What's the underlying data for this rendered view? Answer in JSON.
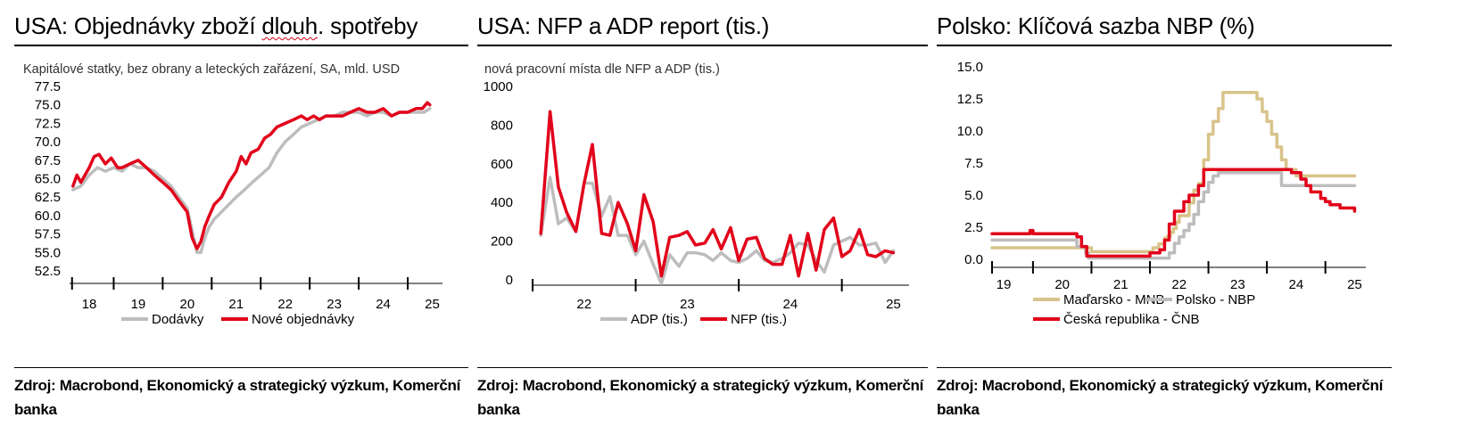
{
  "panels": [
    {
      "title_pre": "USA: Objednávky zboží ",
      "title_mid": "dlouh",
      "title_post": ". spotřeby",
      "subtitle": "Kapitálové statky, bez obrany a leteckých zařázení, SA, mld. USD",
      "source": "Zdroj: Macrobond, Ekonomický a strategický výzkum, Komerční banka"
    },
    {
      "title": "USA: NFP a ADP report (tis.)",
      "subtitle": "nová pracovní místa dle NFP a ADP (tis.)",
      "source": "Zdroj: Macrobond, Ekonomický a strategický výzkum, Komerční banka"
    },
    {
      "title": "Polsko: Klíčová sazba NBP (%)",
      "subtitle": "",
      "source": "Zdroj: Macrobond, Ekonomický a strategický výzkum, Komerční banka"
    }
  ],
  "colors": {
    "red": "#e2001a",
    "gray": "#bdbdbd",
    "tan": "#d8c38a"
  },
  "chart_data": [
    {
      "type": "line",
      "title": "USA: Objednávky zboží dlouh. spotřeby",
      "subtitle": "Kapitálové statky, bez obrany a leteckých zařázení, SA, mld. USD",
      "ylim": [
        52.5,
        77.5
      ],
      "yticks": [
        "77.5",
        "75.0",
        "72.5",
        "70.0",
        "67.5",
        "65.0",
        "62.5",
        "60.0",
        "57.5",
        "55.0",
        "52.5"
      ],
      "xlim": [
        2017.6,
        2025.1
      ],
      "xticks": [
        "18",
        "19",
        "20",
        "21",
        "22",
        "23",
        "24",
        "25"
      ],
      "legend": "bottom",
      "series": [
        {
          "name": "Dodávky",
          "color": "gray",
          "x": [
            2017.67,
            2017.83,
            2018.0,
            2018.17,
            2018.33,
            2018.5,
            2018.67,
            2018.83,
            2019.0,
            2019.17,
            2019.33,
            2019.5,
            2019.67,
            2019.83,
            2020.0,
            2020.1,
            2020.2,
            2020.28,
            2020.36,
            2020.45,
            2020.55,
            2020.7,
            2020.85,
            2021.0,
            2021.17,
            2021.33,
            2021.5,
            2021.67,
            2021.83,
            2022.0,
            2022.17,
            2022.33,
            2022.5,
            2022.67,
            2022.83,
            2023.0,
            2023.17,
            2023.33,
            2023.5,
            2023.67,
            2023.83,
            2024.0,
            2024.17,
            2024.33,
            2024.5,
            2024.67,
            2024.83,
            2024.95
          ],
          "values": [
            63.5,
            64.0,
            65.5,
            66.5,
            66.0,
            66.5,
            66.0,
            67.0,
            66.5,
            66.5,
            66.0,
            65.0,
            64.0,
            62.5,
            61.0,
            58.0,
            55.0,
            55.0,
            57.0,
            58.5,
            59.5,
            60.5,
            61.5,
            62.5,
            63.5,
            64.5,
            65.5,
            66.5,
            68.5,
            70.0,
            71.0,
            72.0,
            72.5,
            73.0,
            73.5,
            73.5,
            74.0,
            74.0,
            74.0,
            73.5,
            74.0,
            74.0,
            73.5,
            74.0,
            74.0,
            74.0,
            74.0,
            74.5
          ]
        },
        {
          "name": "Nové objednávky",
          "color": "red",
          "x": [
            2017.67,
            2017.75,
            2017.83,
            2018.0,
            2018.1,
            2018.2,
            2018.33,
            2018.45,
            2018.58,
            2018.67,
            2018.83,
            2019.0,
            2019.17,
            2019.33,
            2019.5,
            2019.67,
            2019.83,
            2020.0,
            2020.1,
            2020.2,
            2020.28,
            2020.36,
            2020.45,
            2020.55,
            2020.7,
            2020.85,
            2021.0,
            2021.1,
            2021.2,
            2021.3,
            2021.45,
            2021.58,
            2021.7,
            2021.83,
            2022.0,
            2022.17,
            2022.33,
            2022.45,
            2022.58,
            2022.7,
            2022.83,
            2023.0,
            2023.17,
            2023.33,
            2023.5,
            2023.67,
            2023.83,
            2024.0,
            2024.17,
            2024.33,
            2024.5,
            2024.67,
            2024.8,
            2024.9,
            2024.95
          ],
          "values": [
            64.0,
            65.5,
            64.5,
            66.5,
            68.0,
            68.3,
            67.0,
            67.8,
            66.5,
            66.5,
            67.0,
            67.5,
            66.5,
            65.5,
            64.5,
            63.5,
            62.0,
            60.5,
            57.0,
            55.5,
            56.5,
            58.5,
            60.0,
            61.5,
            62.5,
            64.5,
            66.0,
            68.0,
            67.0,
            68.5,
            69.0,
            70.5,
            71.0,
            72.0,
            72.5,
            73.0,
            73.5,
            73.0,
            73.5,
            73.0,
            73.5,
            73.5,
            73.5,
            74.0,
            74.5,
            74.0,
            74.0,
            74.5,
            73.5,
            74.0,
            74.0,
            74.5,
            74.5,
            75.3,
            75.0
          ]
        }
      ]
    },
    {
      "type": "line",
      "title": "USA: NFP a ADP report (tis.)",
      "subtitle": "nová pracovní místa dle NFP a ADP (tis.)",
      "ylim": [
        0,
        1000
      ],
      "yticks": [
        "1000",
        "800",
        "600",
        "400",
        "200",
        "0"
      ],
      "xlim": [
        2021.5,
        2025.1
      ],
      "xticks": [
        "22",
        "23",
        "24",
        "25"
      ],
      "legend": "bottom",
      "series": [
        {
          "name": "ADP (tis.)",
          "color": "gray",
          "x": [
            2021.58,
            2021.67,
            2021.75,
            2021.83,
            2021.92,
            2022.0,
            2022.08,
            2022.17,
            2022.25,
            2022.33,
            2022.42,
            2022.5,
            2022.58,
            2022.67,
            2022.75,
            2022.83,
            2022.92,
            2023.0,
            2023.08,
            2023.17,
            2023.25,
            2023.33,
            2023.42,
            2023.5,
            2023.58,
            2023.67,
            2023.75,
            2023.83,
            2023.92,
            2024.0,
            2024.08,
            2024.17,
            2024.25,
            2024.33,
            2024.42,
            2024.5,
            2024.58,
            2024.67,
            2024.75,
            2024.83,
            2024.92,
            2025.0
          ],
          "values": [
            230,
            530,
            290,
            320,
            250,
            500,
            500,
            330,
            430,
            230,
            230,
            130,
            200,
            80,
            -20,
            130,
            70,
            140,
            140,
            130,
            100,
            140,
            100,
            90,
            110,
            150,
            100,
            90,
            110,
            140,
            190,
            180,
            100,
            40,
            180,
            200,
            220,
            180,
            180,
            190,
            90,
            150
          ]
        },
        {
          "name": "NFP (tis.)",
          "color": "red",
          "x": [
            2021.58,
            2021.67,
            2021.75,
            2021.83,
            2021.92,
            2022.0,
            2022.08,
            2022.17,
            2022.25,
            2022.33,
            2022.42,
            2022.5,
            2022.58,
            2022.67,
            2022.75,
            2022.83,
            2022.92,
            2023.0,
            2023.08,
            2023.17,
            2023.25,
            2023.33,
            2023.42,
            2023.5,
            2023.58,
            2023.67,
            2023.75,
            2023.83,
            2023.92,
            2024.0,
            2024.08,
            2024.17,
            2024.25,
            2024.33,
            2024.42,
            2024.5,
            2024.58,
            2024.67,
            2024.75,
            2024.83,
            2024.92,
            2025.0
          ],
          "values": [
            240,
            870,
            480,
            350,
            250,
            500,
            700,
            240,
            230,
            400,
            290,
            150,
            440,
            300,
            20,
            220,
            230,
            250,
            180,
            190,
            260,
            160,
            270,
            100,
            210,
            220,
            110,
            80,
            80,
            230,
            20,
            240,
            50,
            260,
            320,
            120,
            150,
            260,
            130,
            120,
            150,
            140
          ]
        }
      ]
    },
    {
      "type": "line",
      "title": "Polsko: Klíčová sazba NBP (%)",
      "ylim": [
        0,
        15
      ],
      "yticks": [
        "15.0",
        "12.5",
        "10.0",
        "7.5",
        "5.0",
        "2.5",
        "0.0"
      ],
      "xlim": [
        2018.8,
        2025.1
      ],
      "xticks": [
        "19",
        "20",
        "21",
        "22",
        "23",
        "24",
        "25"
      ],
      "legend": "bottom",
      "series": [
        {
          "name": "Maďarsko - MNB",
          "color": "tan",
          "x": [
            2018.8,
            2019.8,
            2019.85,
            2020.0,
            2020.4,
            2020.5,
            2020.6,
            2021.0,
            2021.45,
            2021.55,
            2021.65,
            2021.75,
            2021.8,
            2021.85,
            2021.9,
            2021.95,
            2022.0,
            2022.08,
            2022.17,
            2022.25,
            2022.33,
            2022.42,
            2022.5,
            2022.58,
            2022.67,
            2022.75,
            2023.25,
            2023.33,
            2023.42,
            2023.5,
            2023.58,
            2023.67,
            2023.75,
            2023.83,
            2023.92,
            2024.0,
            2024.17,
            2024.33,
            2024.5,
            2024.67,
            2025.0
          ],
          "values": [
            0.9,
            0.9,
            0.9,
            0.9,
            0.9,
            0.6,
            0.6,
            0.6,
            0.6,
            0.9,
            1.2,
            1.65,
            1.8,
            2.1,
            2.4,
            2.9,
            3.4,
            3.4,
            4.4,
            5.4,
            5.9,
            7.75,
            9.75,
            10.75,
            11.75,
            13.0,
            13.0,
            12.5,
            11.5,
            10.75,
            9.75,
            8.75,
            7.75,
            7.0,
            7.0,
            6.5,
            6.5,
            6.5,
            6.5,
            6.5,
            6.5
          ]
        },
        {
          "name": "Polsko - NBP",
          "color": "gray",
          "x": [
            2018.8,
            2020.2,
            2020.25,
            2020.4,
            2020.45,
            2021.8,
            2021.83,
            2021.92,
            2022.0,
            2022.08,
            2022.17,
            2022.25,
            2022.33,
            2022.42,
            2022.5,
            2022.58,
            2022.67,
            2022.75,
            2023.67,
            2023.75,
            2024.0,
            2025.0
          ],
          "values": [
            1.5,
            1.5,
            1.0,
            0.5,
            0.1,
            0.1,
            0.5,
            1.25,
            1.75,
            2.25,
            2.75,
            3.5,
            4.5,
            5.25,
            6.0,
            6.5,
            6.75,
            6.75,
            6.75,
            5.75,
            5.75,
            5.75
          ]
        },
        {
          "name": "Česká republika - ČNB",
          "color": "red",
          "x": [
            2018.8,
            2019.35,
            2019.45,
            2019.5,
            2020.0,
            2020.17,
            2020.25,
            2020.33,
            2020.42,
            2021.42,
            2021.5,
            2021.67,
            2021.75,
            2021.83,
            2021.92,
            2022.0,
            2022.08,
            2022.17,
            2022.25,
            2022.33,
            2022.42,
            2022.5,
            2023.83,
            2023.92,
            2024.0,
            2024.08,
            2024.17,
            2024.25,
            2024.33,
            2024.42,
            2024.5,
            2024.58,
            2024.67,
            2024.75,
            2024.83,
            2025.0
          ],
          "values": [
            2.0,
            2.0,
            2.25,
            2.0,
            2.0,
            2.0,
            1.75,
            1.0,
            0.25,
            0.25,
            0.5,
            0.75,
            1.5,
            2.75,
            3.75,
            3.75,
            4.5,
            5.0,
            5.0,
            5.75,
            7.0,
            7.0,
            7.0,
            6.75,
            6.75,
            6.25,
            5.75,
            5.25,
            5.25,
            4.75,
            4.5,
            4.25,
            4.25,
            4.0,
            4.0,
            3.75
          ]
        }
      ]
    }
  ]
}
